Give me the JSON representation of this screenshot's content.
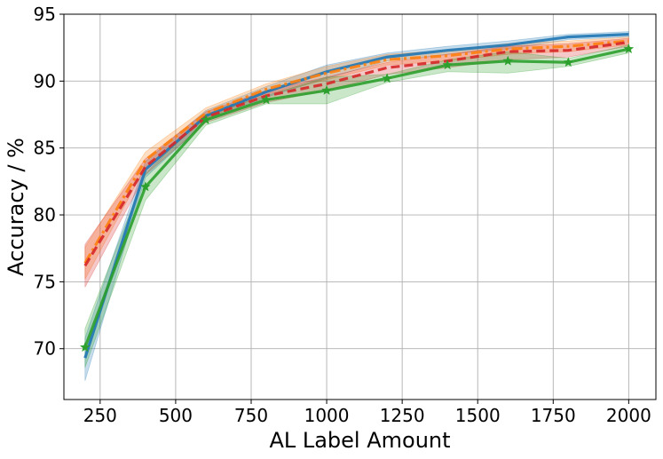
{
  "chart_data": {
    "type": "line",
    "title": "",
    "xlabel": "AL Label Amount",
    "ylabel": "Accuracy / %",
    "xlim": [
      130,
      2090
    ],
    "ylim": [
      66.2,
      95
    ],
    "xticks": [
      250,
      500,
      750,
      1000,
      1250,
      1500,
      1750,
      2000
    ],
    "yticks": [
      70,
      75,
      80,
      85,
      90,
      95
    ],
    "grid": true,
    "legend": "none",
    "x": [
      200,
      400,
      600,
      800,
      1000,
      1200,
      1400,
      1600,
      1800,
      2000
    ],
    "series": [
      {
        "color": "#1f77b4",
        "line_style": "solid",
        "marker": "none",
        "values": [
          69.3,
          83.4,
          87.4,
          89.2,
          90.7,
          91.8,
          92.3,
          92.7,
          93.3,
          93.5
        ],
        "band_low": [
          67.6,
          82.8,
          87.0,
          88.8,
          90.2,
          91.5,
          92.0,
          92.4,
          93.1,
          93.3
        ],
        "band_high": [
          70.8,
          84.0,
          87.8,
          89.6,
          91.2,
          92.1,
          92.6,
          93.0,
          93.5,
          93.7
        ]
      },
      {
        "color": "#ff7f0e",
        "line_style": "dashdot",
        "marker": "none",
        "values": [
          76.4,
          84.1,
          87.6,
          89.4,
          90.6,
          91.6,
          91.9,
          92.4,
          92.6,
          93.0
        ],
        "band_low": [
          75.2,
          83.6,
          87.2,
          89.0,
          90.1,
          91.2,
          91.5,
          92.0,
          92.2,
          92.7
        ],
        "band_high": [
          77.6,
          84.7,
          88.0,
          89.8,
          91.1,
          92.0,
          92.3,
          92.8,
          93.0,
          93.3
        ]
      },
      {
        "color": "#d62728",
        "line_style": "dashed",
        "marker": "none",
        "values": [
          76.2,
          83.6,
          87.3,
          88.9,
          89.8,
          91.0,
          91.5,
          92.2,
          92.3,
          92.9
        ],
        "band_low": [
          74.6,
          83.0,
          86.9,
          88.4,
          89.3,
          90.5,
          91.0,
          91.6,
          91.8,
          92.6
        ],
        "band_high": [
          77.8,
          84.2,
          87.7,
          89.3,
          90.3,
          91.4,
          92.0,
          92.6,
          92.8,
          93.2
        ]
      },
      {
        "color": "#2ca02c",
        "line_style": "solid",
        "marker": "star",
        "values": [
          70.1,
          82.1,
          87.1,
          88.6,
          89.3,
          90.2,
          91.2,
          91.5,
          91.4,
          92.4
        ],
        "band_low": [
          68.6,
          81.1,
          86.7,
          88.3,
          88.3,
          89.9,
          90.7,
          90.6,
          91.1,
          92.1
        ],
        "band_high": [
          71.5,
          83.1,
          87.5,
          88.9,
          90.3,
          90.5,
          91.6,
          92.2,
          91.7,
          92.7
        ]
      }
    ]
  }
}
